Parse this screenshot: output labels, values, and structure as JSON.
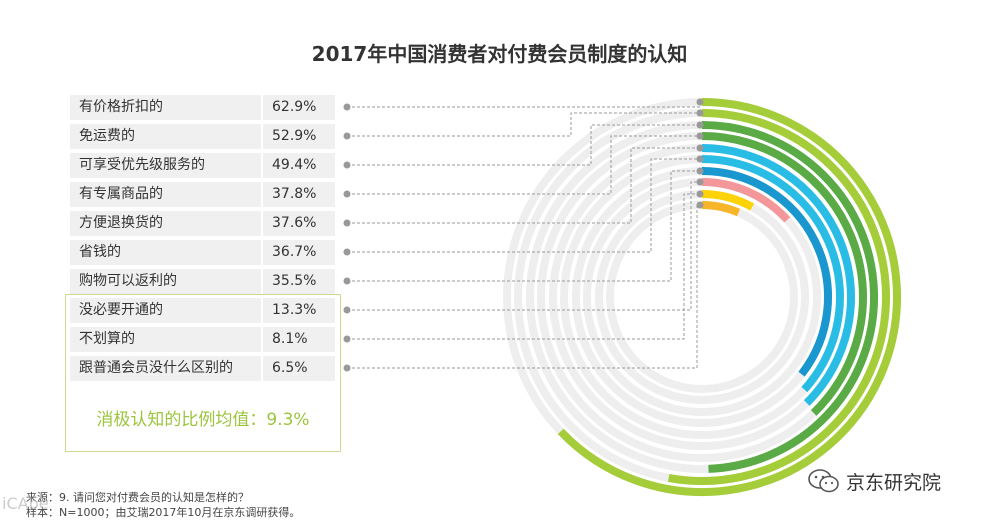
{
  "chart_data": {
    "type": "radial-bar",
    "title": "2017年中国消费者对付费会员制度的认知",
    "unit": "%",
    "max": 100,
    "categories": [
      "有价格折扣的",
      "免运费的",
      "可享受优先级服务的",
      "有专属商品的",
      "方便退换货的",
      "省钱的",
      "购物可以返利的",
      "没必要开通的",
      "不划算的",
      "跟普通会员没什么区别的"
    ],
    "values": [
      62.9,
      52.9,
      49.4,
      37.8,
      37.6,
      36.7,
      35.5,
      13.3,
      8.1,
      6.5
    ],
    "value_labels": [
      "62.9%",
      "52.9%",
      "49.4%",
      "37.8%",
      "37.6%",
      "36.7%",
      "35.5%",
      "13.3%",
      "8.1%",
      "6.5%"
    ],
    "colors": [
      "#a5cd39",
      "#a5cd39",
      "#5aaa46",
      "#5aaa46",
      "#29bde6",
      "#29bde6",
      "#1a97cf",
      "#f4979a",
      "#fdd206",
      "#f7b529"
    ],
    "track_color": "#eeeeee",
    "negative_summary": "消极认知的比例均值：9.3%"
  },
  "footer": {
    "source_line": "来源：9. 请问您对付费会员的认知是怎样的？",
    "sample_line": "样本：N=1000；由艾瑞2017年10月在京东调研获得。"
  },
  "brand": {
    "name": "京东研究院"
  },
  "watermark": {
    "text": "iCAbe"
  }
}
